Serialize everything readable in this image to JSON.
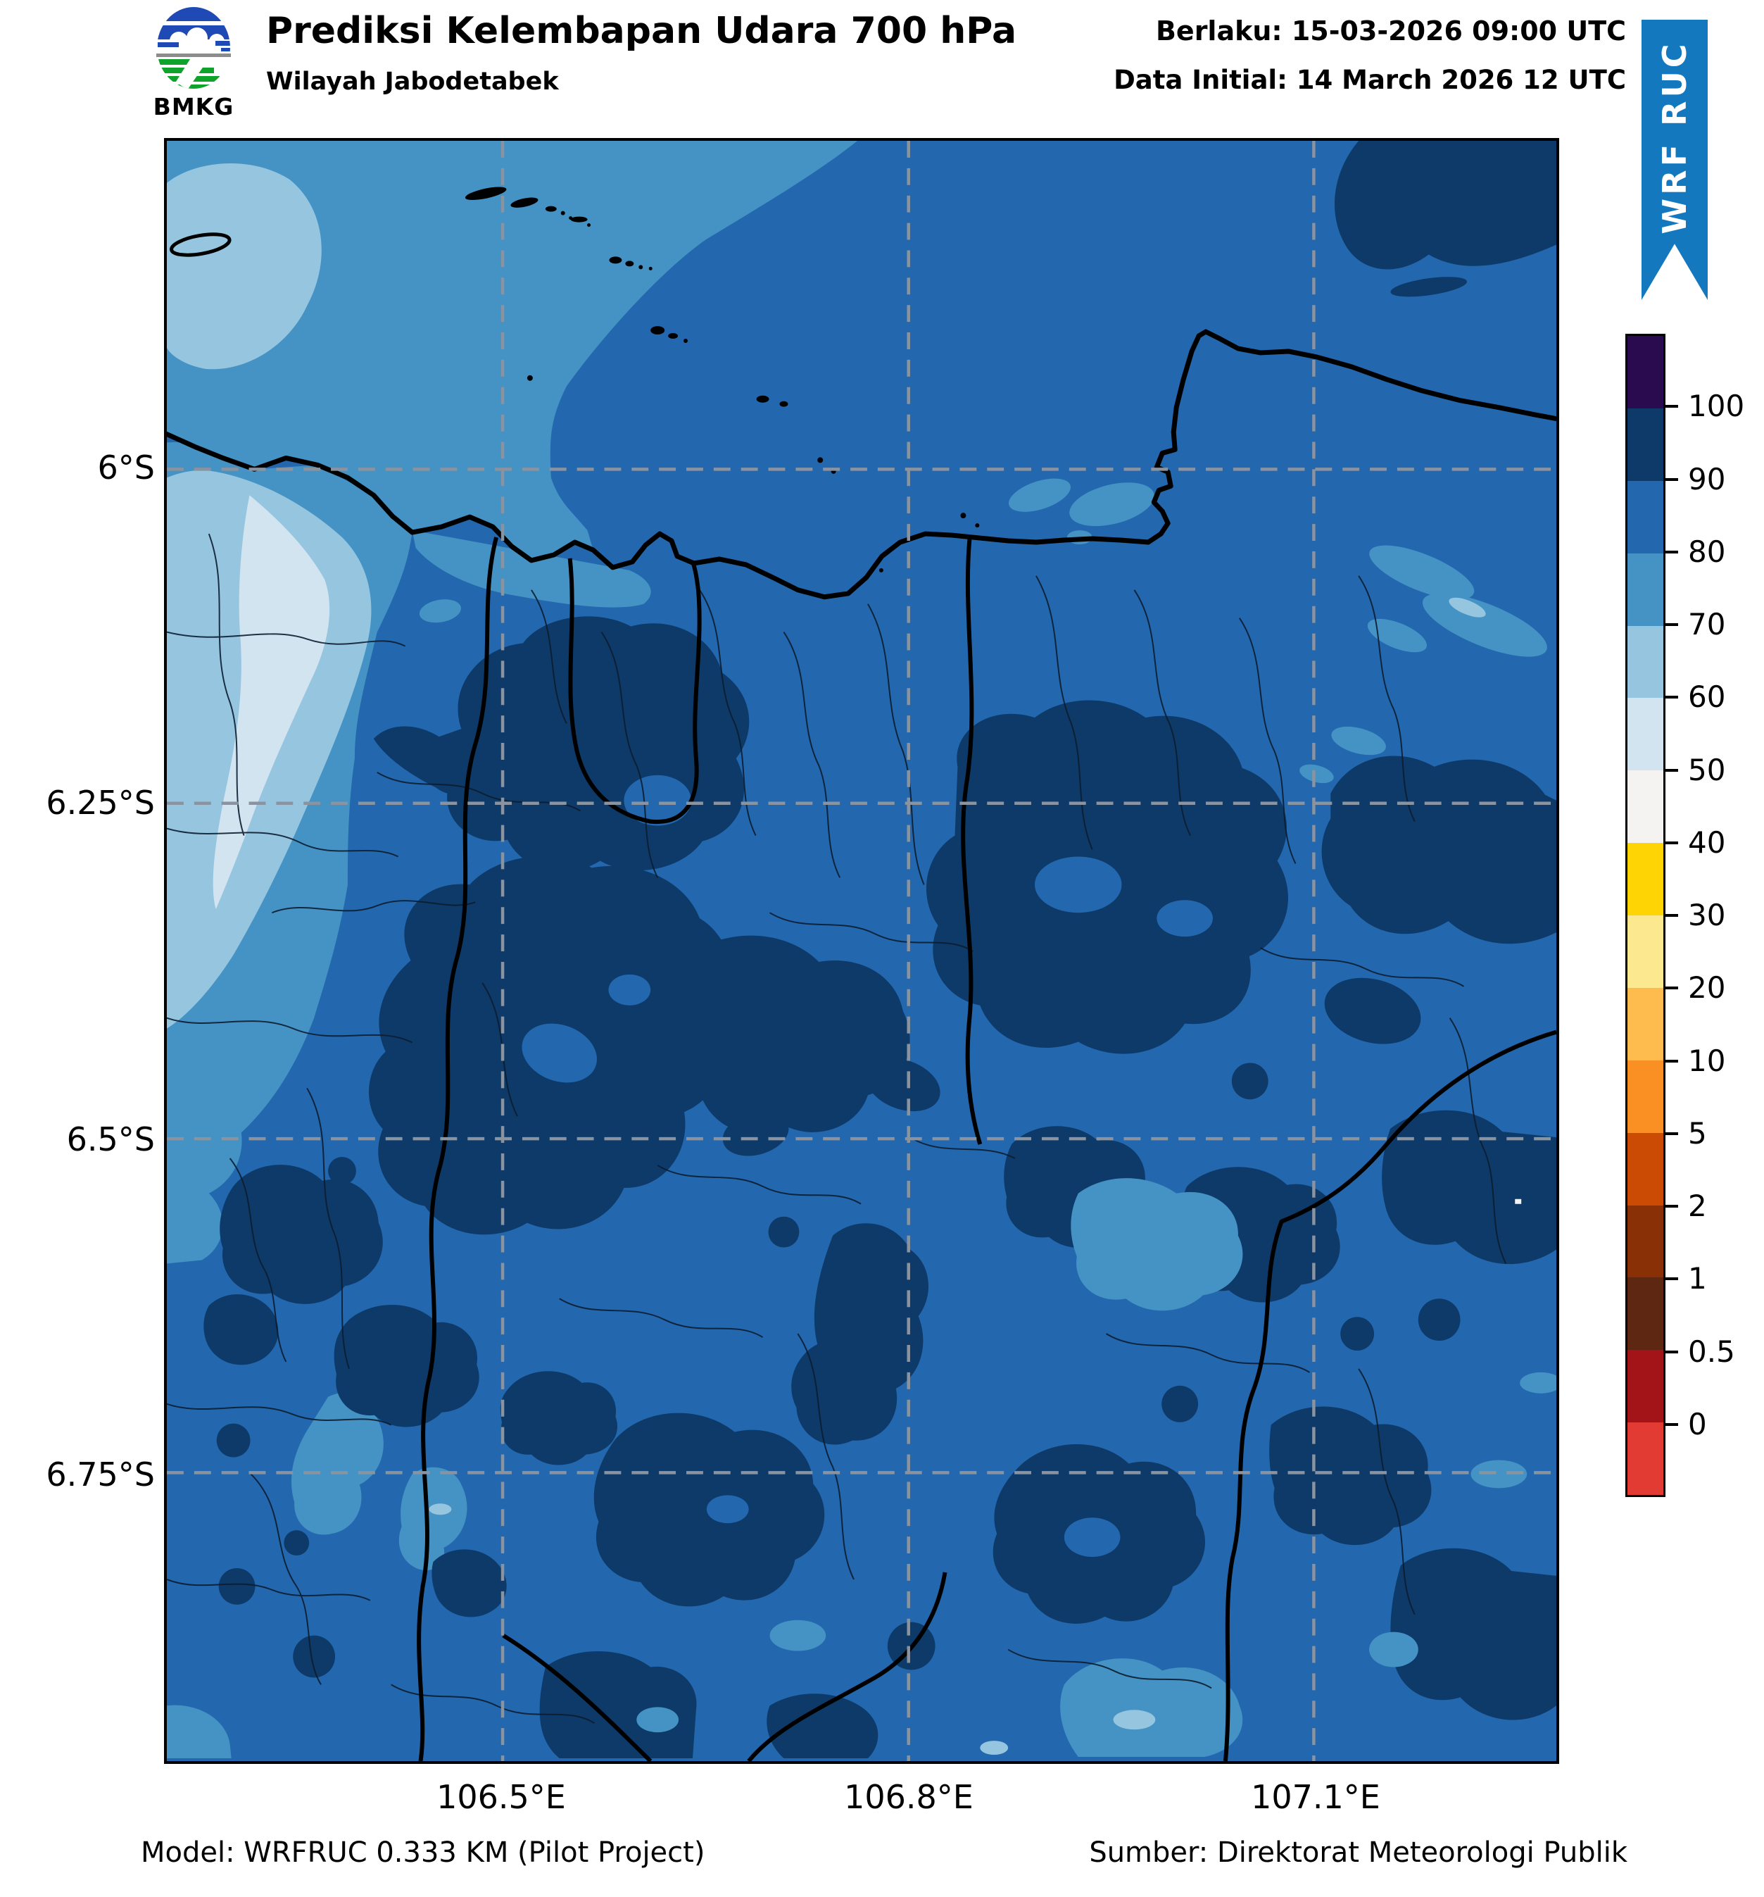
{
  "header": {
    "logo_text": "BMKG",
    "title": "Prediksi Kelembapan Udara 700 hPa",
    "subtitle": "Wilayah Jabodetabek",
    "valid_time": "Berlaku: 15-03-2026 09:00 UTC",
    "data_initial": "Data Initial: 14 March 2026 12 UTC",
    "ribbon_label": "WRF RUC",
    "ribbon_color": "#1478BE"
  },
  "footer": {
    "model": "Model: WRFRUC 0.333 KM (Pilot Project)",
    "source": "Sumber: Direktorat Meteorologi Publik"
  },
  "chart_data": {
    "type": "heatmap",
    "title": "Prediksi Kelembapan Udara 700 hPa",
    "region": "Wilayah Jabodetabek",
    "variable": "Relative humidity at 700 hPa (%)",
    "valid": "15-03-2026 09:00 UTC",
    "initial": "14 March 2026 12 UTC",
    "model": "WRFRUC 0.333 KM (Pilot Project)",
    "source": "Direktorat Meteorologi Publik",
    "x_axis": {
      "ticks": [
        "106.5°E",
        "106.8°E",
        "107.1°E"
      ],
      "tick_values": [
        106.5,
        106.8,
        107.1
      ],
      "range_deg_east": [
        106.25,
        107.28
      ],
      "gridlines": true
    },
    "y_axis": {
      "ticks": [
        "6°S",
        "6.25°S",
        "6.5°S",
        "6.75°S"
      ],
      "tick_values": [
        -6.0,
        -6.25,
        -6.5,
        -6.75
      ],
      "range_deg": [
        -5.76,
        -6.96
      ],
      "gridlines": true
    },
    "legend_position": "right",
    "colorbar": {
      "tick_labels": [
        "100",
        "90",
        "80",
        "70",
        "60",
        "50",
        "40",
        "30",
        "20",
        "10",
        "5",
        "2",
        "1",
        "0.5",
        "0"
      ],
      "levels_top_to_bottom": [
        100,
        90,
        80,
        70,
        60,
        50,
        40,
        30,
        20,
        10,
        5,
        2,
        1,
        0.5,
        0
      ],
      "extend": "both",
      "segment_colors_top_to_bottom": [
        "#2A0B50",
        "#0D3A68",
        "#2367AE",
        "#4493C4",
        "#96C5E0",
        "#D3E4F1",
        "#F4F3F1",
        "#FFD404",
        "#FCE88E",
        "#FDBC4D",
        "#FA9023",
        "#CB4A04",
        "#8A3007",
        "#5E2711",
        "#A31419",
        "#E23B33"
      ]
    },
    "field_values_depicted": {
      "dominant_rh_percent": "80-90 over most of domain (medium blue)",
      "rh_90_100_percent": "large dark-navy patches across central Jakarta, Bekasi, Bogor highlands, east and south of domain, and top-right sea corner",
      "rh_70_80_percent": "northwest Java Sea, west Banten band, scattered inland patches",
      "rh_60_70_percent": "small pale patches northwest corner and west band",
      "rh_50_60_percent": "tiny sliver in west band",
      "minimum_shown_percent": 50
    },
    "map_overlays": [
      "coastline",
      "administrative boundaries",
      "dashed lat-lon graticule",
      "Kepulauan Seribu islands"
    ]
  }
}
